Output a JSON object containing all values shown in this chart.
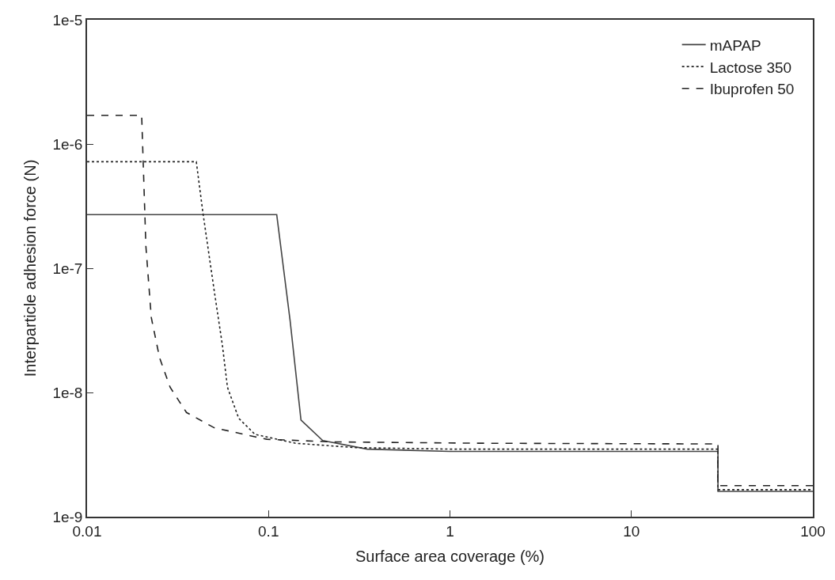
{
  "chart_data": {
    "type": "line",
    "xlabel": "Surface area coverage (%)",
    "ylabel": "Interparticle adhesion force (N)",
    "log": "xy",
    "grid": false,
    "legend": "top right",
    "marker": "none",
    "xlim": [
      0.01,
      100
    ],
    "xticks": [
      0.01,
      0.1,
      1,
      10,
      100
    ],
    "ylim": [
      1e-09,
      1e-05
    ],
    "yticks": [
      {
        "value": 1e-09,
        "label": "1e-9"
      },
      {
        "value": 1e-08,
        "label": "1e-8"
      },
      {
        "value": 1e-07,
        "label": "1e-7"
      },
      {
        "value": 1e-06,
        "label": "1e-6"
      },
      {
        "value": 1e-05,
        "label": "1e-5"
      }
    ],
    "series": [
      {
        "name": "mAPAP",
        "color": "#444444",
        "line_style": "solid",
        "x": [
          0.01,
          0.111,
          0.1315,
          0.151,
          0.199,
          0.35,
          1,
          30,
          30,
          100
        ],
        "values": [
          2.7e-07,
          2.7e-07,
          3.8e-08,
          6e-09,
          4.1e-09,
          3.5e-09,
          3.35e-09,
          3.35e-09,
          1.6e-09,
          1.6e-09
        ]
      },
      {
        "name": "Lactose 350",
        "color": "#222222",
        "line_style": "dotted",
        "x": [
          0.01,
          0.04,
          0.0435,
          0.0502,
          0.0557,
          0.0594,
          0.0685,
          0.0842,
          0.141,
          0.3,
          1,
          30,
          30,
          100
        ],
        "values": [
          7.2e-07,
          7.2e-07,
          2.8e-07,
          6.6e-08,
          2.4e-08,
          1.1e-08,
          6.2e-09,
          4.6e-09,
          3.9e-09,
          3.6e-09,
          3.5e-09,
          3.5e-09,
          1.65e-09,
          1.65e-09
        ]
      },
      {
        "name": "Ibuprofen 50",
        "color": "#222222",
        "line_style": "dashed",
        "x": [
          0.01,
          0.02,
          0.0211,
          0.0226,
          0.0251,
          0.0287,
          0.0353,
          0.0502,
          0.0842,
          0.098,
          0.23,
          1.6,
          30,
          30,
          100
        ],
        "values": [
          1.7e-06,
          1.7e-06,
          1.5e-07,
          4e-08,
          1.9e-08,
          1.1e-08,
          6.9e-09,
          5.2e-09,
          4.4e-09,
          4.2e-09,
          4e-09,
          3.9e-09,
          3.85e-09,
          1.78e-09,
          1.78e-09
        ]
      }
    ]
  }
}
